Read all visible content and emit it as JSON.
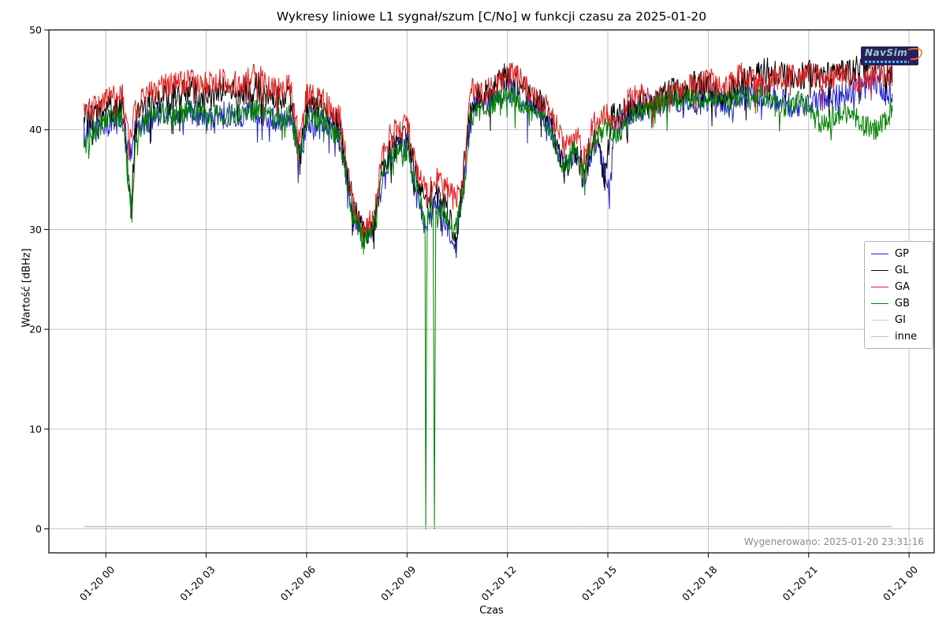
{
  "chart_data": {
    "type": "line",
    "title": "Wykresy liniowe L1 sygnał/szum [C/No] w funkcji czasu za 2025-01-20",
    "xlabel": "Czas",
    "ylabel": "Wartość [dBHz]",
    "x_unit": "hours since 2025-01-20 00:00",
    "xlim": [
      -1.7,
      24.75
    ],
    "ylim": [
      -2.4,
      50
    ],
    "grid": true,
    "grid_color": "#b4b4b4",
    "axis_color": "#000000",
    "legend_position": "right",
    "x_ticks": [
      {
        "value": 0,
        "label": "01-20 00"
      },
      {
        "value": 3,
        "label": "01-20 03"
      },
      {
        "value": 6,
        "label": "01-20 06"
      },
      {
        "value": 9,
        "label": "01-20 09"
      },
      {
        "value": 12,
        "label": "01-20 12"
      },
      {
        "value": 15,
        "label": "01-20 15"
      },
      {
        "value": 18,
        "label": "01-20 18"
      },
      {
        "value": 21,
        "label": "01-20 21"
      },
      {
        "value": 24,
        "label": "01-21 00"
      }
    ],
    "y_ticks": [
      0,
      10,
      20,
      30,
      40,
      50
    ],
    "series": [
      {
        "name": "GP",
        "color": "#2222cc",
        "noise": 1.3,
        "keypoints": [
          [
            -0.65,
            39.5
          ],
          [
            0,
            40.5
          ],
          [
            0.5,
            41
          ],
          [
            0.7,
            37.5
          ],
          [
            0.9,
            40
          ],
          [
            1.5,
            41.5
          ],
          [
            2,
            41.5
          ],
          [
            2.5,
            42
          ],
          [
            3,
            41
          ],
          [
            3.5,
            41.5
          ],
          [
            4,
            41.5
          ],
          [
            4.5,
            42
          ],
          [
            5,
            41
          ],
          [
            5.5,
            41.5
          ],
          [
            5.8,
            37.5
          ],
          [
            6,
            41
          ],
          [
            6.5,
            41
          ],
          [
            7,
            39
          ],
          [
            7.4,
            31.5
          ],
          [
            7.7,
            29.5
          ],
          [
            8,
            30
          ],
          [
            8.3,
            36
          ],
          [
            8.6,
            38
          ],
          [
            9,
            38.5
          ],
          [
            9.3,
            33
          ],
          [
            9.6,
            31
          ],
          [
            9.9,
            33
          ],
          [
            10.2,
            30
          ],
          [
            10.45,
            27.5
          ],
          [
            10.6,
            32
          ],
          [
            10.8,
            39
          ],
          [
            11,
            42
          ],
          [
            11.5,
            43
          ],
          [
            12,
            44
          ],
          [
            12.3,
            43.5
          ],
          [
            12.6,
            42.5
          ],
          [
            13,
            42
          ],
          [
            13.4,
            39
          ],
          [
            13.7,
            36
          ],
          [
            14,
            38
          ],
          [
            14.3,
            35
          ],
          [
            14.6,
            39
          ],
          [
            14.9,
            36
          ],
          [
            15.05,
            33.5
          ],
          [
            15.2,
            40
          ],
          [
            15.6,
            41.5
          ],
          [
            16,
            42
          ],
          [
            16.5,
            42.5
          ],
          [
            17,
            43
          ],
          [
            17.5,
            42.5
          ],
          [
            18,
            43
          ],
          [
            18.5,
            42.5
          ],
          [
            19,
            43
          ],
          [
            19.5,
            43.5
          ],
          [
            20,
            43
          ],
          [
            20.5,
            42.5
          ],
          [
            21,
            42.5
          ],
          [
            21.5,
            43
          ],
          [
            22,
            43.5
          ],
          [
            22.5,
            44
          ],
          [
            23,
            45
          ],
          [
            23.3,
            43.5
          ],
          [
            23.5,
            44
          ]
        ]
      },
      {
        "name": "GL",
        "color": "#000000",
        "noise": 1.5,
        "keypoints": [
          [
            -0.65,
            41
          ],
          [
            0,
            42
          ],
          [
            0.5,
            42.5
          ],
          [
            0.65,
            36
          ],
          [
            0.75,
            31.5
          ],
          [
            0.9,
            41
          ],
          [
            1.5,
            43
          ],
          [
            2,
            43.5
          ],
          [
            2.5,
            44
          ],
          [
            3,
            43
          ],
          [
            3.5,
            44
          ],
          [
            4,
            43.5
          ],
          [
            4.5,
            44.5
          ],
          [
            5,
            43
          ],
          [
            5.5,
            43.5
          ],
          [
            5.8,
            37
          ],
          [
            6,
            42.5
          ],
          [
            6.5,
            42.5
          ],
          [
            7,
            40
          ],
          [
            7.4,
            32
          ],
          [
            7.7,
            29.5
          ],
          [
            8,
            30
          ],
          [
            8.3,
            36.5
          ],
          [
            8.6,
            38.5
          ],
          [
            9,
            39
          ],
          [
            9.3,
            35
          ],
          [
            9.6,
            33
          ],
          [
            9.9,
            34
          ],
          [
            10.2,
            32
          ],
          [
            10.45,
            28.5
          ],
          [
            10.6,
            33
          ],
          [
            10.8,
            40
          ],
          [
            11,
            43
          ],
          [
            11.5,
            44
          ],
          [
            12,
            45.5
          ],
          [
            12.3,
            45
          ],
          [
            12.6,
            43.5
          ],
          [
            13,
            42.5
          ],
          [
            13.4,
            40
          ],
          [
            13.7,
            36
          ],
          [
            14,
            38
          ],
          [
            14.3,
            36
          ],
          [
            14.6,
            40
          ],
          [
            14.9,
            34.5
          ],
          [
            15.1,
            41
          ],
          [
            15.6,
            42
          ],
          [
            16,
            42.5
          ],
          [
            16.5,
            43
          ],
          [
            17,
            44
          ],
          [
            17.3,
            43
          ],
          [
            17.6,
            44.5
          ],
          [
            18,
            44.5
          ],
          [
            18.4,
            43
          ],
          [
            18.7,
            44
          ],
          [
            19,
            45
          ],
          [
            19.5,
            46
          ],
          [
            20,
            45.5
          ],
          [
            20.5,
            45.5
          ],
          [
            21,
            45.5
          ],
          [
            21.5,
            45.5
          ],
          [
            22,
            45.5
          ],
          [
            22.5,
            46
          ],
          [
            23,
            46.5
          ],
          [
            23.3,
            45.5
          ],
          [
            23.5,
            46
          ]
        ]
      },
      {
        "name": "GA",
        "color": "#e02020",
        "noise": 1.3,
        "keypoints": [
          [
            -0.65,
            41.5
          ],
          [
            0,
            43
          ],
          [
            0.5,
            43.5
          ],
          [
            0.7,
            38.5
          ],
          [
            0.9,
            42.5
          ],
          [
            1.5,
            44
          ],
          [
            2,
            44.5
          ],
          [
            2.5,
            45
          ],
          [
            3,
            44.5
          ],
          [
            3.5,
            45
          ],
          [
            4,
            44.5
          ],
          [
            4.5,
            45.5
          ],
          [
            5,
            44
          ],
          [
            5.5,
            44.5
          ],
          [
            5.8,
            38.5
          ],
          [
            6,
            43.5
          ],
          [
            6.5,
            43
          ],
          [
            7,
            41
          ],
          [
            7.4,
            33
          ],
          [
            7.7,
            30
          ],
          [
            8,
            31
          ],
          [
            8.3,
            38
          ],
          [
            8.6,
            40
          ],
          [
            9,
            40.5
          ],
          [
            9.3,
            36
          ],
          [
            9.6,
            33.5
          ],
          [
            9.9,
            35
          ],
          [
            10.2,
            34
          ],
          [
            10.45,
            33
          ],
          [
            10.7,
            36
          ],
          [
            10.9,
            44
          ],
          [
            11.2,
            43.5
          ],
          [
            11.5,
            44
          ],
          [
            12,
            45.5
          ],
          [
            12.3,
            45.5
          ],
          [
            12.6,
            44
          ],
          [
            13,
            43
          ],
          [
            13.4,
            41
          ],
          [
            13.7,
            38
          ],
          [
            14,
            40
          ],
          [
            14.3,
            37
          ],
          [
            14.6,
            41
          ],
          [
            15,
            42
          ],
          [
            15.3,
            40
          ],
          [
            15.6,
            43
          ],
          [
            16,
            43.5
          ],
          [
            16.5,
            43
          ],
          [
            17,
            44
          ],
          [
            17.5,
            44.5
          ],
          [
            18,
            45
          ],
          [
            18.5,
            44
          ],
          [
            19,
            45.5
          ],
          [
            19.5,
            44.5
          ],
          [
            20,
            45
          ],
          [
            20.5,
            45.5
          ],
          [
            21,
            45.5
          ],
          [
            21.5,
            45
          ],
          [
            22,
            45.5
          ],
          [
            22.5,
            45
          ],
          [
            23,
            45.5
          ],
          [
            23.5,
            45.5
          ]
        ]
      },
      {
        "name": "GB",
        "color": "#008000",
        "noise": 1.1,
        "keypoints": [
          [
            -0.65,
            38.5
          ],
          [
            0,
            41
          ],
          [
            0.5,
            41.5
          ],
          [
            0.65,
            36
          ],
          [
            0.78,
            31.5
          ],
          [
            0.9,
            40
          ],
          [
            1.5,
            41.5
          ],
          [
            2,
            41.5
          ],
          [
            2.5,
            42
          ],
          [
            3,
            41.5
          ],
          [
            3.5,
            41.5
          ],
          [
            4,
            41.5
          ],
          [
            4.5,
            42
          ],
          [
            5,
            41
          ],
          [
            5.5,
            41.5
          ],
          [
            5.8,
            37.5
          ],
          [
            6,
            41
          ],
          [
            6.5,
            41
          ],
          [
            7,
            39
          ],
          [
            7.4,
            31
          ],
          [
            7.7,
            29
          ],
          [
            8,
            30
          ],
          [
            8.3,
            36
          ],
          [
            8.6,
            37.5
          ],
          [
            9,
            38
          ],
          [
            9.3,
            34
          ],
          [
            9.5,
            31.5
          ],
          [
            9.54,
            31
          ],
          [
            9.56,
            0
          ],
          [
            9.6,
            31
          ],
          [
            9.78,
            32
          ],
          [
            9.82,
            0
          ],
          [
            9.86,
            32
          ],
          [
            10.2,
            31
          ],
          [
            10.45,
            30
          ],
          [
            10.7,
            34
          ],
          [
            10.9,
            41
          ],
          [
            11.2,
            42
          ],
          [
            11.5,
            42.5
          ],
          [
            12,
            43.5
          ],
          [
            12.3,
            43
          ],
          [
            12.6,
            42
          ],
          [
            13,
            41.5
          ],
          [
            13.4,
            39
          ],
          [
            13.7,
            36
          ],
          [
            14,
            38
          ],
          [
            14.3,
            35.5
          ],
          [
            14.6,
            39
          ],
          [
            15,
            40.5
          ],
          [
            15.3,
            39
          ],
          [
            15.6,
            41
          ],
          [
            16,
            42
          ],
          [
            16.5,
            42.5
          ],
          [
            17,
            43
          ],
          [
            17.5,
            43
          ],
          [
            18,
            43
          ],
          [
            18.5,
            43
          ],
          [
            19,
            43.5
          ],
          [
            19.3,
            43
          ],
          [
            19.6,
            43.5
          ],
          [
            20,
            43
          ],
          [
            20.4,
            42
          ],
          [
            20.7,
            43
          ],
          [
            21,
            42
          ],
          [
            21.4,
            40.5
          ],
          [
            21.8,
            41.5
          ],
          [
            22.2,
            42
          ],
          [
            22.6,
            40.5
          ],
          [
            23,
            40
          ],
          [
            23.3,
            41
          ],
          [
            23.5,
            42
          ]
        ]
      },
      {
        "name": "GI",
        "color": "#add8e6",
        "noise": 0.02,
        "keypoints": [
          [
            -0.65,
            0.2
          ],
          [
            23.5,
            0.2
          ]
        ]
      },
      {
        "name": "inne",
        "color": "#e0bd92",
        "noise": 0.02,
        "keypoints": [
          [
            -0.65,
            0.25
          ],
          [
            23.5,
            0.25
          ]
        ]
      }
    ]
  },
  "footer": {
    "generated_text": "Wygenerowano: 2025-01-20 23:31:16"
  },
  "watermark": {
    "text": "NavSim"
  }
}
